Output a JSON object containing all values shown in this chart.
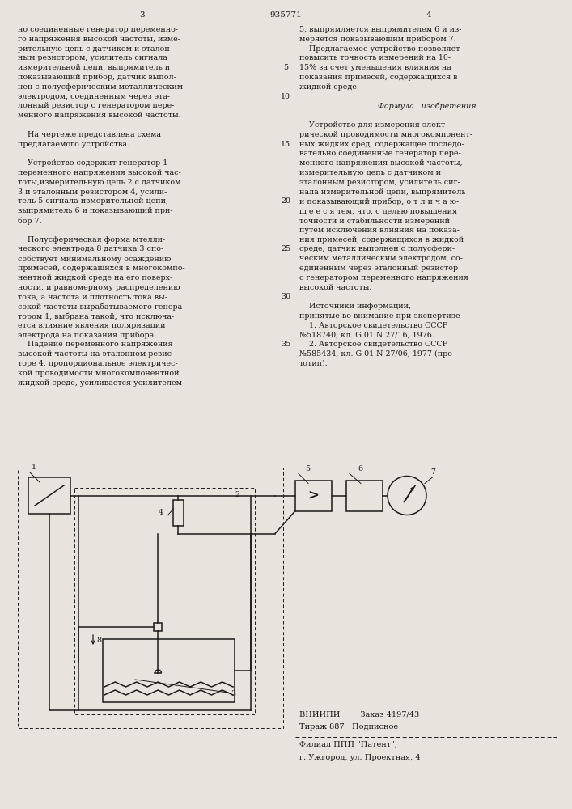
{
  "page_number_left": "3",
  "patent_number": "935771",
  "page_number_right": "4",
  "bg_color": "#e8e4dd",
  "text_color": "#1a1a1a",
  "left_column_lines": [
    "но соединенные генератор переменно-",
    "го напряжения высокой частоты, изме-",
    "рительную цепь с датчиком и эталон-",
    "ным резистором, усилитель сигнала",
    "измерительной цепи, выпрямитель и",
    "показывающий прибор, датчик выпол-",
    "нен с полусферическим металлическим",
    "электродом, соединенным через эта-",
    "лонный резистор с генератором пере-",
    "менного напряжения высокой частоты.",
    "",
    "    На чертеже представлена схема",
    "предлагаемого устройства.",
    "",
    "    Устройство содержит генератор 1",
    "переменного напряжения высокой час-",
    "тоты,измерительную цепь 2 с датчиком",
    "3 и эталонным резистором 4, усили-",
    "тель 5 сигнала измерительной цепи,",
    "выпрямитель 6 и показывающий при-",
    "бор 7.",
    "",
    "    Полусферическая форма мтелли-",
    "ческого электрода 8 датчика 3 спо-",
    "собствует минимальному осаждению",
    "примесей, содержащихся в многокомпо-",
    "нентной жидкой среде на его поверх-",
    "ности, и равномерному распределению",
    "тока, а частота и плотность тока вы-",
    "сокой частоты вырабатываемого генера-",
    "тором 1, выбрана такой, что исключа-",
    "ется влияние явления поляризации",
    "электрода на показания прибора.",
    "    Падение переменного напряжения",
    "высокой частоты на эталонном резис-",
    "торе 4, пропорциональное электричес-",
    "кой проводимости многокомпонентной",
    "жидкой среде, усиливается усилителем"
  ],
  "right_column_lines": [
    "5, выпрямляется выпрямителем 6 и из-",
    "меряется показывающим прибором 7.",
    "    Предлагаемое устройство позволяет",
    "повысить точность измерений на 10-",
    "15% за счет уменьшения влияния на",
    "показания примесей, содержащихся в",
    "жидкой среде.",
    "",
    "Формула   изобретения",
    "",
    "    Устройство для измерения элект-",
    "рической проводимости многокомпонент-",
    "ных жидких сред, содержащее последо-",
    "вательно соединенные генератор пере-",
    "менного напряжения высокой частоты,",
    "измерительную цепь с датчиком и",
    "эталонным резистором, усилитель сиг-",
    "нала измерительной цепи, выпрямитель",
    "и показывающий прибор, о т л и ч а ю-",
    "щ е е с я тем, что, с целью повышения",
    "точности и стабильности измерений",
    "путем исключения влияния на показа-",
    "ния примесей, содержащихся в жидкой",
    "среде, датчик выполнен с полусфери-",
    "ческим металлическим электродом, со-",
    "единенным через эталонный резистор",
    "с генератором переменного напряжения",
    "высокой частоты.",
    "",
    "    Источники информации,",
    "принятые во внимание при экспертизе",
    "    1. Авторское свидетельство СССР",
    "№518740, кл. G 01 N 27/16, 1976.",
    "    2. Авторское свидетельство СССР",
    "№585434, кл. G 01 N 27/06, 1977 (про-",
    "тотип)."
  ],
  "line_numbers": {
    "4": "5",
    "7": "10",
    "12": "15",
    "18": "20",
    "23": "25",
    "28": "30",
    "33": "35"
  },
  "footer_line1": "ВНИИПИ        Заказ 4197/43",
  "footer_line2": "Тираж 887   Подписное",
  "footer_line3": "Филиал ППП \"Патент\",",
  "footer_line4": "г. Ужгород, ул. Проектная, 4"
}
